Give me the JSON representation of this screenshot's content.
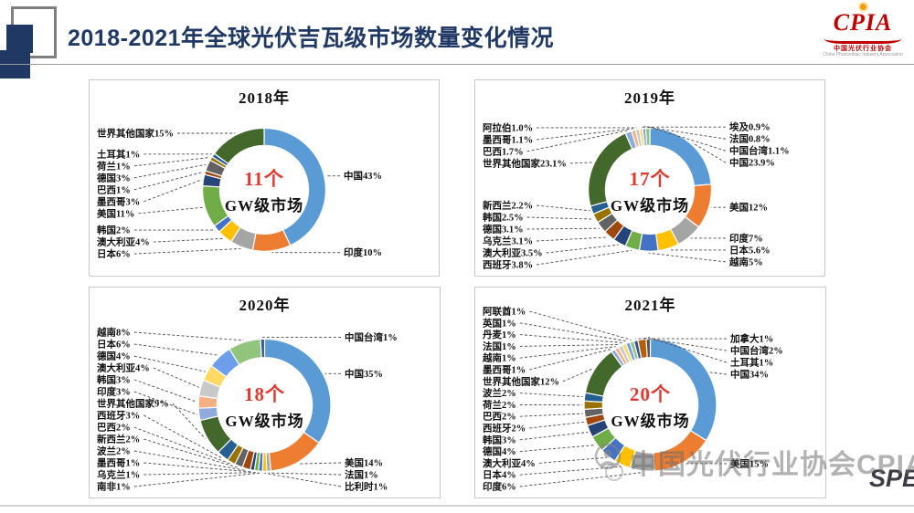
{
  "slide": {
    "title": "2018-2021年全球光伏吉瓦级市场数量变化情况",
    "colors": {
      "title_navy": "#1f3864",
      "logo_red": "#c00000",
      "count_red": "#e03a30"
    },
    "logo": {
      "text": "CPIA",
      "subtext_cn": "中国光伏行业协会",
      "subtext_en": "China Photovoltaic Industry Association"
    },
    "watermark": {
      "icon": "person-circle-icon",
      "text": "中国光伏行业协会CPIA",
      "side_text": "SPE"
    }
  },
  "chart_style": {
    "palette": [
      "#5B9BD5",
      "#ED7D31",
      "#A5A5A5",
      "#FFC000",
      "#4472C4",
      "#70AD47",
      "#264478",
      "#9E480E",
      "#636363",
      "#997300",
      "#255E91",
      "#43682B",
      "#8FAADC",
      "#F4B183",
      "#C9C9C9",
      "#FFD966",
      "#6D9EEB",
      "#93C47D",
      "#2F5597",
      "#B45F06",
      "#525252",
      "#BF9000",
      "#1F4E79",
      "#2C5234"
    ],
    "leader_color": "#4a4a4a",
    "slice_stroke": "#ffffff"
  },
  "chart_data": [
    {
      "type": "pie",
      "title": "2018年",
      "center_count": "11个",
      "center_label": "GW级市场",
      "slices": [
        {
          "name": "中国",
          "value": 43,
          "label": "中国43%"
        },
        {
          "name": "印度",
          "value": 10,
          "label": "印度10%"
        },
        {
          "name": "日本",
          "value": 6,
          "label": "日本6%"
        },
        {
          "name": "澳大利亚",
          "value": 4,
          "label": "澳大利亚4%"
        },
        {
          "name": "韩国",
          "value": 2,
          "label": "韩国2%"
        },
        {
          "name": "美国",
          "value": 11,
          "label": "美国11%"
        },
        {
          "name": "墨西哥",
          "value": 3,
          "label": "墨西哥3%"
        },
        {
          "name": "巴西",
          "value": 1,
          "label": "巴西1%"
        },
        {
          "name": "德国",
          "value": 3,
          "label": "德国3%"
        },
        {
          "name": "荷兰",
          "value": 1,
          "label": "荷兰1%"
        },
        {
          "name": "土耳其",
          "value": 1,
          "label": "土耳其1%"
        },
        {
          "name": "世界其他国家",
          "value": 15,
          "label": "世界其他国家15%"
        }
      ]
    },
    {
      "type": "pie",
      "title": "2019年",
      "center_count": "17个",
      "center_label": "GW级市场",
      "slices": [
        {
          "name": "中国",
          "value": 23.9,
          "label": "中国23.9%"
        },
        {
          "name": "美国",
          "value": 12,
          "label": "美国12%"
        },
        {
          "name": "印度",
          "value": 7,
          "label": "印度7%"
        },
        {
          "name": "日本",
          "value": 5.6,
          "label": "日本5.6%"
        },
        {
          "name": "越南",
          "value": 5,
          "label": "越南5%"
        },
        {
          "name": "西班牙",
          "value": 3.8,
          "label": "西班牙3.8%"
        },
        {
          "name": "澳大利亚",
          "value": 3.5,
          "label": "澳大利亚3.5%"
        },
        {
          "name": "乌克兰",
          "value": 3.1,
          "label": "乌克兰3.1%"
        },
        {
          "name": "德国",
          "value": 3.1,
          "label": "德国3.1%"
        },
        {
          "name": "韩国",
          "value": 2.5,
          "label": "韩国2.5%"
        },
        {
          "name": "新西兰",
          "value": 2.2,
          "label": "新西兰2.2%"
        },
        {
          "name": "世界其他国家",
          "value": 23.1,
          "label": "世界其他国家23.1%"
        },
        {
          "name": "巴西",
          "value": 1.7,
          "label": "巴西1.7%"
        },
        {
          "name": "墨西哥",
          "value": 1.1,
          "label": "墨西哥1.1%"
        },
        {
          "name": "阿拉伯",
          "value": 1.0,
          "label": "阿拉伯1.0%"
        },
        {
          "name": "埃及",
          "value": 0.9,
          "label": "埃及0.9%"
        },
        {
          "name": "法国",
          "value": 0.8,
          "label": "法国0.8%"
        },
        {
          "name": "中国台湾",
          "value": 1.1,
          "label": "中国台湾1.1%"
        }
      ]
    },
    {
      "type": "pie",
      "title": "2020年",
      "center_count": "18个",
      "center_label": "GW级市场",
      "slices": [
        {
          "name": "中国",
          "value": 35,
          "label": "中国35%"
        },
        {
          "name": "美国",
          "value": 14,
          "label": "美国14%"
        },
        {
          "name": "法国",
          "value": 1,
          "label": "法国1%"
        },
        {
          "name": "比利时",
          "value": 1,
          "label": "比利时1%"
        },
        {
          "name": "南非",
          "value": 1,
          "label": "南非1%"
        },
        {
          "name": "乌克兰",
          "value": 1,
          "label": "乌克兰1%"
        },
        {
          "name": "墨西哥",
          "value": 1,
          "label": "墨西哥1%"
        },
        {
          "name": "波兰",
          "value": 2,
          "label": "波兰2%"
        },
        {
          "name": "新西兰",
          "value": 2,
          "label": "新西兰2%"
        },
        {
          "name": "巴西",
          "value": 2,
          "label": "巴西2%"
        },
        {
          "name": "西班牙",
          "value": 3,
          "label": "西班牙3%"
        },
        {
          "name": "世界其他国家",
          "value": 9,
          "label": "世界其他国家9%"
        },
        {
          "name": "印度",
          "value": 3,
          "label": "印度3%"
        },
        {
          "name": "韩国",
          "value": 3,
          "label": "韩国3%"
        },
        {
          "name": "澳大利亚",
          "value": 4,
          "label": "澳大利亚4%"
        },
        {
          "name": "德国",
          "value": 4,
          "label": "德国4%"
        },
        {
          "name": "日本",
          "value": 6,
          "label": "日本6%"
        },
        {
          "name": "越南",
          "value": 8,
          "label": "越南8%"
        },
        {
          "name": "中国台湾",
          "value": 1,
          "label": "中国台湾1%"
        }
      ]
    },
    {
      "type": "pie",
      "title": "2021年",
      "center_count": "20个",
      "center_label": "GW级市场",
      "slices": [
        {
          "name": "中国",
          "value": 34,
          "label": "中国34%"
        },
        {
          "name": "美国",
          "value": 15,
          "label": "美国15%"
        },
        {
          "name": "印度",
          "value": 6,
          "label": "印度6%"
        },
        {
          "name": "日本",
          "value": 4,
          "label": "日本4%"
        },
        {
          "name": "澳大利亚",
          "value": 4,
          "label": "澳大利亚4%"
        },
        {
          "name": "德国",
          "value": 4,
          "label": "德国4%"
        },
        {
          "name": "韩国",
          "value": 3,
          "label": "韩国3%"
        },
        {
          "name": "西班牙",
          "value": 2,
          "label": "西班牙2%"
        },
        {
          "name": "巴西",
          "value": 2,
          "label": "巴西2%"
        },
        {
          "name": "荷兰",
          "value": 2,
          "label": "荷兰2%"
        },
        {
          "name": "波兰",
          "value": 2,
          "label": "波兰2%"
        },
        {
          "name": "世界其他国家",
          "value": 12,
          "label": "世界其他国家12%"
        },
        {
          "name": "墨西哥",
          "value": 1,
          "label": "墨西哥1%"
        },
        {
          "name": "越南",
          "value": 1,
          "label": "越南1%"
        },
        {
          "name": "法国",
          "value": 1,
          "label": "法国1%"
        },
        {
          "name": "丹麦",
          "value": 1,
          "label": "丹麦1%"
        },
        {
          "name": "英国",
          "value": 1,
          "label": "英国1%"
        },
        {
          "name": "阿联酋",
          "value": 1,
          "label": "阿联酋1%"
        },
        {
          "name": "加拿大",
          "value": 1,
          "label": "加拿大1%"
        },
        {
          "name": "中国台湾",
          "value": 2,
          "label": "中国台湾2%"
        },
        {
          "name": "土耳其",
          "value": 1,
          "label": "土耳其1%"
        }
      ]
    }
  ]
}
